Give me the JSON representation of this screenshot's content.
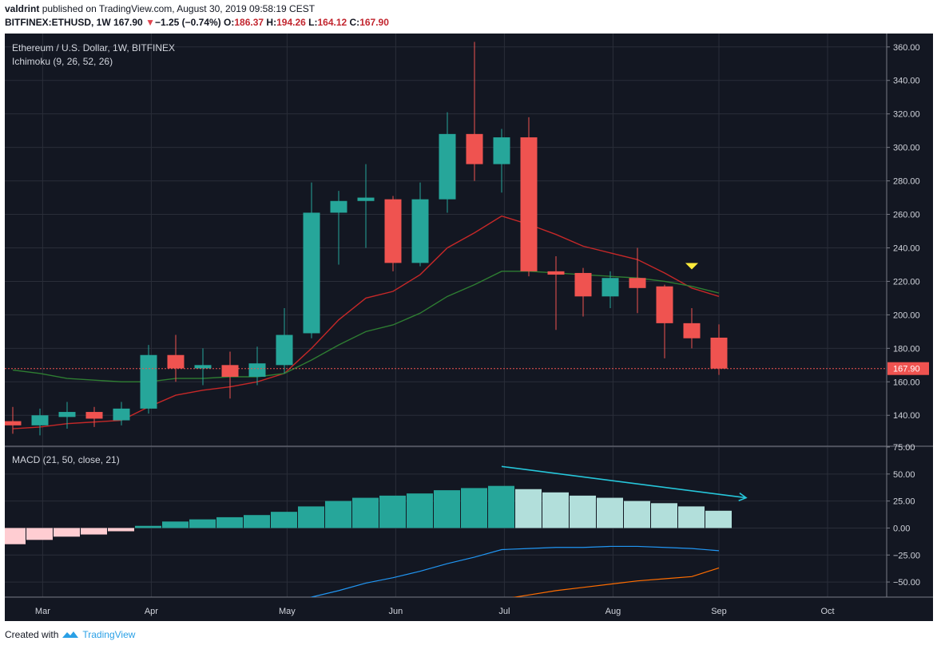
{
  "header": {
    "author": "valdrint",
    "published": "published on TradingView.com, August 30, 2019 09:58:19 CEST",
    "symbol": "BITFINEX:ETHUSD, 1W",
    "last": "167.90",
    "change_arrow": "▼",
    "change": "−1.25 (−0.74%)",
    "o_label": "O:",
    "o_value": "186.37",
    "h_label": "H:",
    "h_value": "194.26",
    "l_label": "L:",
    "l_value": "164.12",
    "c_label": "C:",
    "c_value": "167.90"
  },
  "footer": {
    "created_with": "Created with",
    "brand": "TradingView",
    "logo_icon": "tradingview-cloud-icon"
  },
  "colors": {
    "background": "#131722",
    "grid": "#2a2e39",
    "axis_text": "#d1d4dc",
    "up": "#26a69a",
    "down": "#ef5350",
    "tenkan": "#c62828",
    "kijun": "#2e7d32",
    "macd_line": "#2196f3",
    "signal_line": "#ff6d00",
    "last_price": "#ef5350",
    "hist_up_strong": "#26a69a",
    "hist_up_weak": "#b2dfdb",
    "hist_down_weak": "#ffcdd2",
    "arrow": "#26c6da",
    "marker": "#ffeb3b"
  },
  "chart_data": [
    {
      "type": "candlestick",
      "title": "Ethereum / U.S. Dollar, 1W, BITFINEX",
      "indicator": "Ichimoku (9, 26, 52, 26)",
      "x_ticks": [
        "Mar",
        "Apr",
        "May",
        "Jun",
        "Jul",
        "Aug",
        "Sep",
        "Oct"
      ],
      "ylim": [
        122,
        368
      ],
      "y_ticks": [
        140,
        160,
        180,
        200,
        220,
        240,
        260,
        280,
        300,
        320,
        340,
        360
      ],
      "y_tick_labels": [
        "140.00",
        "160.00",
        "180.00",
        "200.00",
        "220.00",
        "240.00",
        "260.00",
        "280.00",
        "300.00",
        "320.00",
        "340.00",
        "360.00"
      ],
      "last_price": 167.9,
      "last_price_label": "167.90",
      "grid": true,
      "candles": [
        {
          "date": "2019-02-18",
          "o": 136.5,
          "h": 145,
          "l": 129,
          "c": 134
        },
        {
          "date": "2019-02-25",
          "o": 134,
          "h": 144,
          "l": 128,
          "c": 140
        },
        {
          "date": "2019-03-04",
          "o": 139,
          "h": 148,
          "l": 132,
          "c": 142
        },
        {
          "date": "2019-03-11",
          "o": 142,
          "h": 145,
          "l": 133,
          "c": 138
        },
        {
          "date": "2019-03-18",
          "o": 137,
          "h": 148,
          "l": 134,
          "c": 144
        },
        {
          "date": "2019-03-25",
          "o": 144,
          "h": 182,
          "l": 141,
          "c": 176
        },
        {
          "date": "2019-04-01",
          "o": 176,
          "h": 188,
          "l": 160,
          "c": 168
        },
        {
          "date": "2019-04-08",
          "o": 168,
          "h": 180,
          "l": 158,
          "c": 170
        },
        {
          "date": "2019-04-15",
          "o": 170,
          "h": 178,
          "l": 150,
          "c": 163
        },
        {
          "date": "2019-04-22",
          "o": 163,
          "h": 181,
          "l": 158,
          "c": 171
        },
        {
          "date": "2019-04-29",
          "o": 170,
          "h": 204,
          "l": 165,
          "c": 188
        },
        {
          "date": "2019-05-06",
          "o": 189,
          "h": 279,
          "l": 186,
          "c": 261
        },
        {
          "date": "2019-05-13",
          "o": 261,
          "h": 274,
          "l": 230,
          "c": 268
        },
        {
          "date": "2019-05-20",
          "o": 268,
          "h": 290,
          "l": 240,
          "c": 270
        },
        {
          "date": "2019-05-27",
          "o": 269,
          "h": 271,
          "l": 226,
          "c": 231
        },
        {
          "date": "2019-06-03",
          "o": 231,
          "h": 279,
          "l": 229,
          "c": 269
        },
        {
          "date": "2019-06-10",
          "o": 269,
          "h": 321,
          "l": 261,
          "c": 308
        },
        {
          "date": "2019-06-17",
          "o": 308,
          "h": 363,
          "l": 280,
          "c": 290
        },
        {
          "date": "2019-06-24",
          "o": 290,
          "h": 311,
          "l": 273,
          "c": 306
        },
        {
          "date": "2019-07-01",
          "o": 306,
          "h": 318,
          "l": 223,
          "c": 226
        },
        {
          "date": "2019-07-08",
          "o": 226,
          "h": 235,
          "l": 191,
          "c": 224
        },
        {
          "date": "2019-07-15",
          "o": 225,
          "h": 228,
          "l": 199,
          "c": 211
        },
        {
          "date": "2019-07-22",
          "o": 211,
          "h": 226,
          "l": 204,
          "c": 222
        },
        {
          "date": "2019-07-29",
          "o": 222,
          "h": 240,
          "l": 201,
          "c": 216
        },
        {
          "date": "2019-08-05",
          "o": 217,
          "h": 218,
          "l": 174,
          "c": 195
        },
        {
          "date": "2019-08-12",
          "o": 195,
          "h": 204,
          "l": 180,
          "c": 186
        },
        {
          "date": "2019-08-19",
          "o": 186.37,
          "h": 194.26,
          "l": 164.12,
          "c": 167.9
        }
      ],
      "tenkan": [
        132,
        133,
        135,
        136,
        137,
        145,
        152,
        155,
        157,
        160,
        165,
        180,
        197,
        210,
        214,
        224,
        240,
        249,
        259,
        254,
        248,
        241,
        237,
        233,
        225,
        216,
        211
      ],
      "kijun": [
        167,
        165,
        162,
        161,
        160,
        160,
        162,
        162,
        163,
        163,
        165,
        173,
        182,
        190,
        194,
        201,
        211,
        218,
        226,
        226,
        225,
        224,
        223,
        222,
        220,
        217,
        213
      ],
      "marker": {
        "index": 25,
        "price": 229,
        "icon": "down-triangle-icon"
      }
    },
    {
      "type": "bar",
      "title": "MACD (21, 50, close, 21)",
      "ylim": [
        -64,
        75
      ],
      "y_ticks": [
        75,
        50,
        25,
        0,
        -25,
        -50
      ],
      "y_tick_labels": [
        "75.00",
        "50.00",
        "25.00",
        "0.00",
        "−25.00",
        "−50.00"
      ],
      "histogram": [
        -15,
        -11,
        -8,
        -6,
        -3,
        2,
        6,
        8,
        10,
        12,
        15,
        20,
        25,
        28,
        30,
        32,
        35,
        37,
        39,
        36,
        33,
        30,
        28,
        25,
        23,
        20,
        16
      ],
      "macd_line": [
        null,
        null,
        null,
        null,
        null,
        null,
        null,
        null,
        null,
        null,
        -71,
        -64,
        -58,
        -51,
        -46,
        -40,
        -33,
        -27,
        -20,
        -19,
        -18,
        -18,
        -17,
        -17,
        -18,
        -19,
        -21
      ],
      "signal_line": [
        null,
        null,
        null,
        null,
        null,
        null,
        null,
        null,
        null,
        null,
        null,
        null,
        null,
        null,
        null,
        null,
        -74,
        -70,
        -66,
        -62,
        -58,
        -55,
        -52,
        -49,
        -47,
        -45,
        -37
      ],
      "divergence_arrow": {
        "from_index": 18,
        "from_value": 57,
        "to_index": 27,
        "to_value": 28,
        "icon": "arrow-right-icon"
      }
    }
  ]
}
